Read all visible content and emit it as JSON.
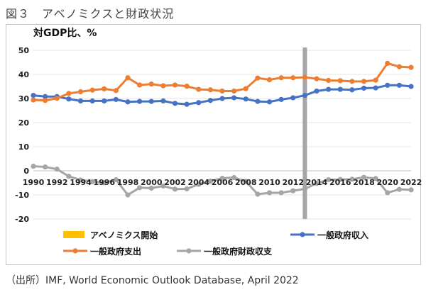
{
  "figure": {
    "title": "図３　アベノミクスと財政状況",
    "source": "（出所）IMF, World Economic Outlook Database, April 2022"
  },
  "chart_data": {
    "type": "line",
    "ylabel": "対GDP比、%",
    "ylim": [
      -20,
      50
    ],
    "yticks": [
      -20,
      -10,
      0,
      10,
      20,
      30,
      40,
      50
    ],
    "x": [
      1990,
      1991,
      1992,
      1993,
      1994,
      1995,
      1996,
      1997,
      1998,
      1999,
      2000,
      2001,
      2002,
      2003,
      2004,
      2005,
      2006,
      2007,
      2008,
      2009,
      2010,
      2011,
      2012,
      2013,
      2014,
      2015,
      2016,
      2017,
      2018,
      2019,
      2020,
      2021,
      2022
    ],
    "xtick_labels": [
      "1990",
      "1992",
      "1994",
      "1996",
      "1998",
      "2000",
      "2002",
      "2004",
      "2006",
      "2008",
      "2010",
      "2012",
      "2014",
      "2016",
      "2018",
      "2020",
      "2022"
    ],
    "grid": true,
    "legend_position": "bottom",
    "event_marker": {
      "label": "アベノミクス開始",
      "x": 2013,
      "color": "#a6a6a6",
      "legend_color": "#ffc000"
    },
    "series": [
      {
        "name": "一般政府収入",
        "color": "#4472c4",
        "values": [
          31.3,
          30.8,
          30.8,
          29.8,
          29.0,
          29.0,
          29.0,
          29.6,
          28.6,
          28.8,
          28.8,
          29.0,
          28.0,
          27.6,
          28.3,
          29.2,
          30.0,
          30.3,
          29.8,
          28.8,
          28.6,
          29.6,
          30.3,
          31.3,
          33.1,
          33.8,
          33.8,
          33.6,
          34.3,
          34.4,
          35.5,
          35.5,
          35.0
        ]
      },
      {
        "name": "一般政府支出",
        "color": "#ed7d31",
        "values": [
          29.4,
          29.2,
          30.1,
          32.1,
          32.8,
          33.5,
          34.0,
          33.3,
          38.6,
          35.6,
          36.0,
          35.3,
          35.6,
          35.1,
          33.8,
          33.6,
          33.1,
          33.1,
          34.1,
          38.5,
          37.8,
          38.6,
          38.6,
          38.8,
          38.2,
          37.5,
          37.4,
          37.1,
          37.1,
          37.6,
          44.6,
          43.2,
          42.9
        ]
      },
      {
        "name": "一般政府財政収支",
        "color": "#a5a5a5",
        "values": [
          1.9,
          1.6,
          0.7,
          -2.3,
          -3.8,
          -4.5,
          -5.0,
          -3.7,
          -10.0,
          -7.0,
          -7.2,
          -6.3,
          -7.6,
          -7.5,
          -5.6,
          -4.3,
          -3.1,
          -2.8,
          -4.4,
          -9.7,
          -9.1,
          -9.1,
          -8.3,
          -7.5,
          -5.2,
          -3.7,
          -3.6,
          -3.5,
          -2.7,
          -3.2,
          -9.1,
          -7.7,
          -7.9
        ]
      }
    ],
    "legend_order": [
      "アベノミクス開始",
      "一般政府収入",
      "一般政府支出",
      "一般政府財政収支"
    ]
  }
}
